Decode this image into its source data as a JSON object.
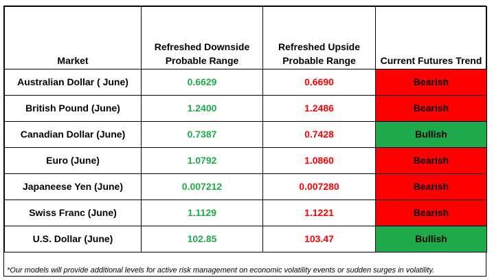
{
  "headers": {
    "market": "Market",
    "downside_line1": "Refreshed Downside",
    "downside_line2": "Probable Range",
    "upside_line1": "Refreshed Upside",
    "upside_line2": "Probable Range",
    "trend": "Current Futures Trend"
  },
  "rows": [
    {
      "market": "Australian Dollar ( June)",
      "downside": "0.6629",
      "upside": "0.6690",
      "trend": "Bearish"
    },
    {
      "market": "British Pound (June)",
      "downside": "1.2400",
      "upside": "1.2486",
      "trend": "Bearish"
    },
    {
      "market": "Canadian Dollar (June)",
      "downside": "0.7387",
      "upside": "0.7428",
      "trend": "Bullish"
    },
    {
      "market": "Euro (June)",
      "downside": "1.0792",
      "upside": "1.0860",
      "trend": "Bearish"
    },
    {
      "market": "Japaneese Yen (June)",
      "downside": "0.007212",
      "upside": "0.007280",
      "trend": "Bearish"
    },
    {
      "market": "Swiss Franc (June)",
      "downside": "1.1129",
      "upside": "1.1221",
      "trend": "Bearish"
    },
    {
      "market": "U.S. Dollar (June)",
      "downside": "102.85",
      "upside": "103.47",
      "trend": "Bullish"
    }
  ],
  "footnote": "*Our models will provide additional levels for active risk management on economic volatility events or sudden surges in volatility.",
  "colors": {
    "downside_text": "#1eaa4a",
    "upside_text": "#ff0000",
    "bearish_fill": "#ff0000",
    "bullish_fill": "#1eaa4a"
  }
}
